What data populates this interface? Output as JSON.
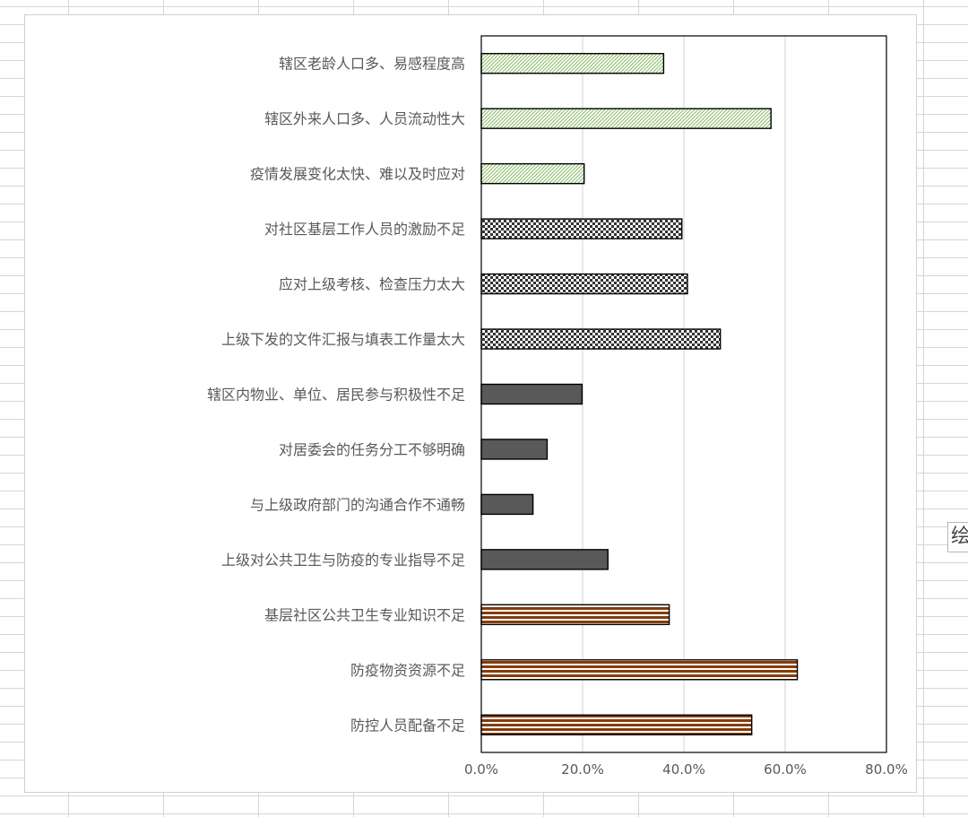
{
  "chart_data": {
    "type": "bar",
    "orientation": "horizontal",
    "title": "",
    "xlabel": "",
    "ylabel": "",
    "xlim": [
      0,
      80
    ],
    "x_tick_labels": [
      "0.0%",
      "20.0%",
      "40.0%",
      "60.0%",
      "80.0%"
    ],
    "grid": "vertical gridlines",
    "legend": "none",
    "categories": [
      "辖区老龄人口多、易感程度高",
      "辖区外来人口多、人员流动性大",
      "疫情发展变化太快、难以及时应对",
      "对社区基层工作人员的激励不足",
      "应对上级考核、检查压力太大",
      "上级下发的文件汇报与填表工作量太大",
      "辖区内物业、单位、居民参与积极性不足",
      "对居委会的任务分工不够明确",
      "与上级政府部门的沟通合作不通畅",
      "上级对公共卫生与防疫的专业指导不足",
      "基层社区公共卫生专业知识不足",
      "防疫物资资源不足",
      "防控人员配备不足"
    ],
    "values": [
      36.0,
      57.2,
      20.3,
      39.6,
      40.7,
      47.2,
      19.9,
      13.0,
      10.2,
      25.0,
      37.1,
      62.4,
      53.4
    ],
    "patterns": [
      "green-hatch",
      "green-hatch",
      "green-hatch",
      "checker",
      "checker",
      "checker",
      "dark-gray",
      "dark-gray",
      "dark-gray",
      "dark-gray",
      "brown-stripes",
      "brown-stripes",
      "brown-stripes"
    ],
    "colors": {
      "hatch_line": "#8fbd6a",
      "checker": "#333333",
      "dark_gray": "#595959",
      "brown_stripe": "#843c0c",
      "bar_outline": "#000000",
      "gridline": "#d9d9d9",
      "text": "#595959"
    }
  },
  "sheet_tab": {
    "text": "绘"
  }
}
